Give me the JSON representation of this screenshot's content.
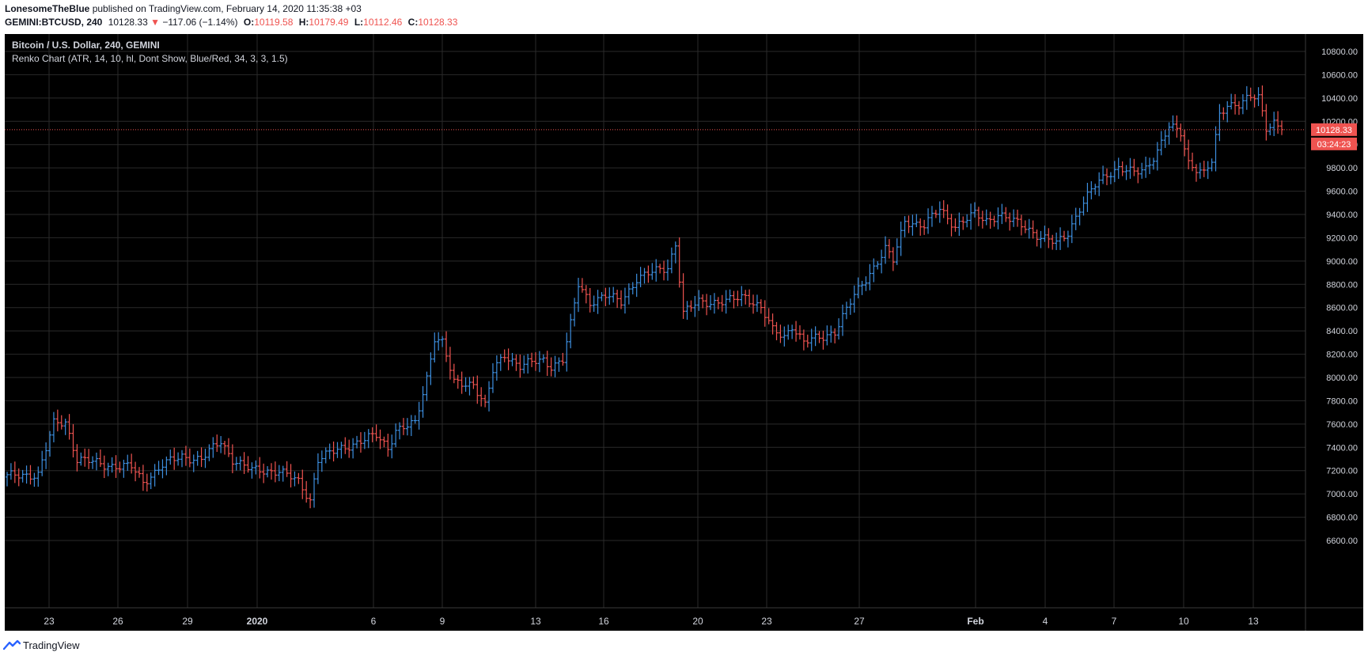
{
  "header": {
    "author": "LonesomeTheBlue",
    "published_text": "published on TradingView.com, February 14, 2020 11:35:38 +03",
    "symbol": "GEMINI:BTCUSD, 240",
    "last_price": "10128.33",
    "change": "−117.06 (−1.14%)",
    "o_label": "O:",
    "o_value": "10119.58",
    "h_label": "H:",
    "h_value": "10179.49",
    "l_label": "L:",
    "l_value": "10112.46",
    "c_label": "C:",
    "c_value": "10128.33"
  },
  "legend": {
    "title": "Bitcoin / U.S. Dollar, 240, GEMINI",
    "indicator": "Renko Chart (ATR, 14, 10, hl, Dont Show, Blue/Red, 34, 3, 3, 1.5)"
  },
  "price_tag": {
    "value": "10128.33",
    "countdown": "03:24:23"
  },
  "footer": {
    "brand": "TradingView"
  },
  "colors": {
    "background": "#000000",
    "grid": "#2a2a2a",
    "up": "#3d8fe0",
    "down": "#ef5350",
    "axis_text": "#d1d4dc"
  },
  "chart_data": {
    "type": "ohlc",
    "title": "Bitcoin / U.S. Dollar, 240, GEMINI",
    "y_ticks": [
      6600,
      6800,
      7000,
      7200,
      7400,
      7600,
      7800,
      8000,
      8200,
      8400,
      8600,
      8800,
      9000,
      9200,
      9400,
      9600,
      9800,
      10000,
      10200,
      10400,
      10600,
      10800
    ],
    "y_tick_labels": [
      "6600.00",
      "6800.00",
      "7000.00",
      "7200.00",
      "7400.00",
      "7600.00",
      "7800.00",
      "8000.00",
      "8200.00",
      "8400.00",
      "8600.00",
      "8800.00",
      "9000.00",
      "9200.00",
      "9400.00",
      "9600.00",
      "9800.00",
      "10000.00",
      "10200.00",
      "10400.00",
      "10600.00",
      "10800.00"
    ],
    "ylim": [
      6500,
      10980
    ],
    "x_tick_labels": [
      "23",
      "26",
      "29",
      "2020",
      "6",
      "9",
      "13",
      "16",
      "20",
      "23",
      "27",
      "Feb",
      "4",
      "7",
      "10",
      "13"
    ],
    "last_price": 10128.33,
    "path": [
      [
        0,
        7150
      ],
      [
        8,
        7170
      ],
      [
        12,
        7600
      ],
      [
        15,
        7620
      ],
      [
        18,
        7300
      ],
      [
        25,
        7250
      ],
      [
        32,
        7230
      ],
      [
        35,
        7100
      ],
      [
        40,
        7250
      ],
      [
        45,
        7320
      ],
      [
        50,
        7300
      ],
      [
        55,
        7450
      ],
      [
        58,
        7300
      ],
      [
        63,
        7200
      ],
      [
        70,
        7200
      ],
      [
        75,
        7100
      ],
      [
        78,
        6950
      ],
      [
        80,
        7300
      ],
      [
        88,
        7420
      ],
      [
        95,
        7500
      ],
      [
        98,
        7400
      ],
      [
        100,
        7550
      ],
      [
        105,
        7600
      ],
      [
        108,
        8000
      ],
      [
        110,
        8350
      ],
      [
        112,
        8300
      ],
      [
        115,
        7950
      ],
      [
        120,
        7950
      ],
      [
        123,
        7750
      ],
      [
        125,
        8050
      ],
      [
        128,
        8200
      ],
      [
        132,
        8100
      ],
      [
        138,
        8150
      ],
      [
        140,
        8100
      ],
      [
        143,
        8150
      ],
      [
        145,
        8450
      ],
      [
        147,
        8800
      ],
      [
        150,
        8650
      ],
      [
        154,
        8700
      ],
      [
        158,
        8650
      ],
      [
        162,
        8850
      ],
      [
        166,
        8900
      ],
      [
        170,
        8950
      ],
      [
        172,
        9150
      ],
      [
        174,
        8550
      ],
      [
        178,
        8650
      ],
      [
        185,
        8650
      ],
      [
        190,
        8700
      ],
      [
        194,
        8600
      ],
      [
        197,
        8400
      ],
      [
        200,
        8350
      ],
      [
        202,
        8450
      ],
      [
        205,
        8300
      ],
      [
        210,
        8350
      ],
      [
        213,
        8400
      ],
      [
        218,
        8700
      ],
      [
        222,
        8900
      ],
      [
        226,
        9100
      ],
      [
        228,
        9000
      ],
      [
        231,
        9350
      ],
      [
        236,
        9300
      ],
      [
        240,
        9450
      ],
      [
        244,
        9300
      ],
      [
        249,
        9400
      ],
      [
        252,
        9350
      ],
      [
        255,
        9400
      ],
      [
        258,
        9350
      ],
      [
        262,
        9300
      ],
      [
        266,
        9200
      ],
      [
        270,
        9150
      ],
      [
        273,
        9250
      ],
      [
        276,
        9450
      ],
      [
        280,
        9650
      ],
      [
        283,
        9750
      ],
      [
        286,
        9800
      ],
      [
        290,
        9750
      ],
      [
        293,
        9800
      ],
      [
        296,
        9950
      ],
      [
        299,
        10150
      ],
      [
        302,
        10100
      ],
      [
        304,
        9850
      ],
      [
        306,
        9800
      ],
      [
        308,
        9750
      ],
      [
        310,
        9850
      ],
      [
        312,
        10250
      ],
      [
        314,
        10350
      ],
      [
        317,
        10350
      ],
      [
        320,
        10400
      ],
      [
        322,
        10400
      ],
      [
        324,
        10150
      ],
      [
        326,
        10200
      ],
      [
        328,
        10130
      ]
    ]
  }
}
